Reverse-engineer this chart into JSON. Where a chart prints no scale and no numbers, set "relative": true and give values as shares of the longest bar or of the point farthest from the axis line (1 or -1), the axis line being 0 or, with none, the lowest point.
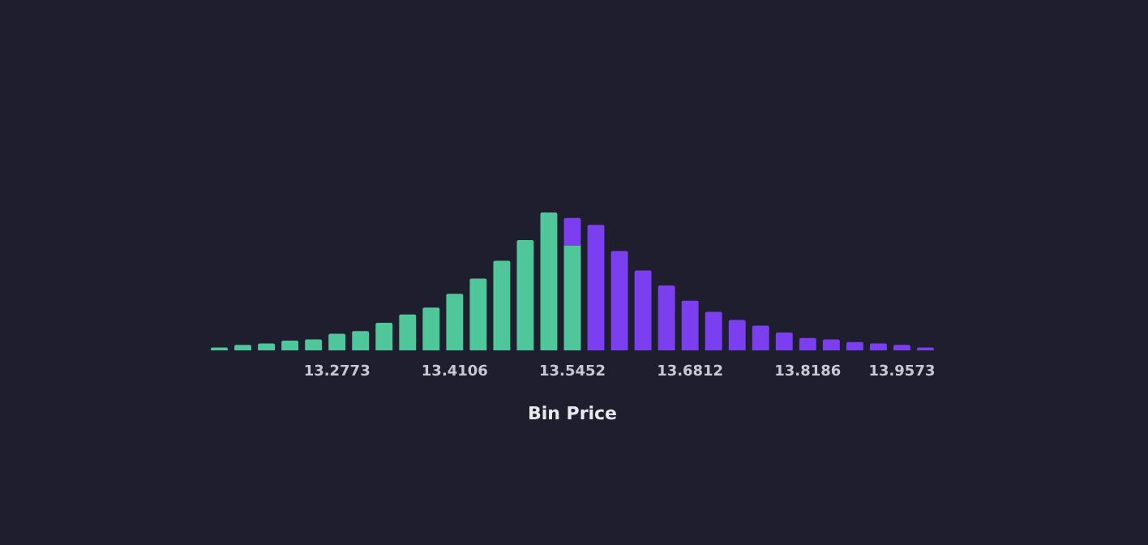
{
  "chart_data": {
    "type": "bar",
    "xlabel": "Bin Price",
    "relative": true,
    "stacked": true,
    "categories": [
      null,
      null,
      null,
      null,
      null,
      "13.2773",
      null,
      null,
      null,
      null,
      "13.4106",
      null,
      null,
      null,
      null,
      "13.5452",
      null,
      null,
      null,
      null,
      "13.6812",
      null,
      null,
      null,
      null,
      "13.8186",
      null,
      null,
      null,
      "13.9573",
      null
    ],
    "series": [
      {
        "color": "#4fc79a",
        "values": [
          0.02,
          0.04,
          0.05,
          0.07,
          0.08,
          0.12,
          0.14,
          0.2,
          0.26,
          0.31,
          0.41,
          0.52,
          0.65,
          0.8,
          1,
          0.76,
          null,
          null,
          null,
          null,
          null,
          null,
          null,
          null,
          null,
          null,
          null,
          null,
          null,
          null,
          null
        ]
      },
      {
        "color": "#7b3ff0",
        "values": [
          null,
          null,
          null,
          null,
          null,
          null,
          null,
          null,
          null,
          null,
          null,
          null,
          null,
          null,
          null,
          0.2,
          0.91,
          0.72,
          0.58,
          0.47,
          0.36,
          0.28,
          0.22,
          0.18,
          0.13,
          0.09,
          0.08,
          0.06,
          0.05,
          0.04,
          0.02
        ]
      }
    ]
  }
}
